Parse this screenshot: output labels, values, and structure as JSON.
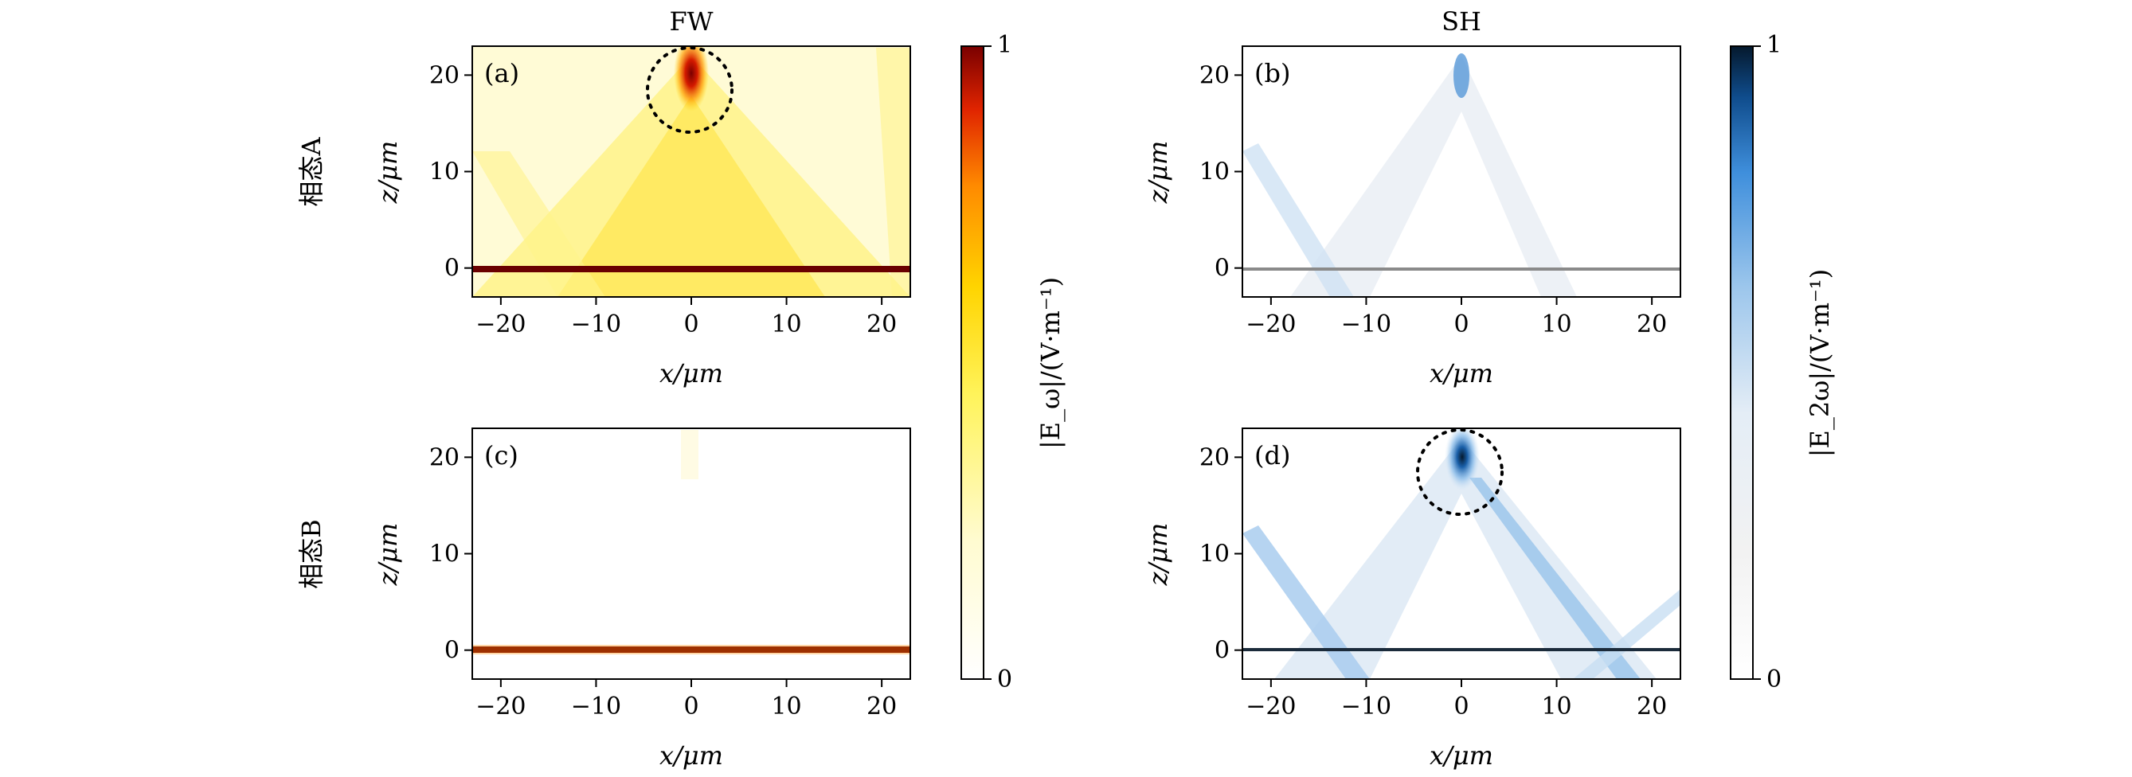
{
  "chart_data": [
    {
      "type": "heatmap",
      "panel": "(a)",
      "title": "FW",
      "row_label": "相态A",
      "xlabel": "x/μm",
      "ylabel": "z/μm",
      "xlim": [
        -23,
        23
      ],
      "ylim": [
        -3,
        23
      ],
      "xticks": [
        -20,
        -10,
        0,
        10,
        20
      ],
      "yticks": [
        0,
        10,
        20
      ],
      "colormap": "hot",
      "features": [
        {
          "kind": "hotspot",
          "x": 0,
          "z": 20,
          "intensity": 1.0
        },
        {
          "kind": "interface",
          "z": -0.3,
          "intensity": 1.0
        },
        {
          "kind": "diagonal-beams",
          "intensity": 0.35
        }
      ],
      "annotation": {
        "kind": "dotted-circle",
        "x": 0,
        "z": 19.5
      }
    },
    {
      "type": "heatmap",
      "panel": "(b)",
      "title": "SH",
      "xlabel": "x/μm",
      "ylabel": "z/μm",
      "xlim": [
        -23,
        23
      ],
      "ylim": [
        -3,
        23
      ],
      "xticks": [
        -20,
        -10,
        0,
        10,
        20
      ],
      "yticks": [
        0,
        10,
        20
      ],
      "colormap": "blues",
      "features": [
        {
          "kind": "hotspot",
          "x": 0,
          "z": 20.5,
          "intensity": 0.55
        },
        {
          "kind": "interface",
          "z": -0.3,
          "intensity": 0.35
        },
        {
          "kind": "diagonal-beams",
          "intensity": 0.2
        }
      ]
    },
    {
      "type": "heatmap",
      "panel": "(c)",
      "row_label": "相态B",
      "xlabel": "x/μm",
      "ylabel": "z/μm",
      "xlim": [
        -23,
        23
      ],
      "ylim": [
        -3,
        23
      ],
      "xticks": [
        -20,
        -10,
        0,
        10,
        20
      ],
      "yticks": [
        0,
        10,
        20
      ],
      "colormap": "hot",
      "features": [
        {
          "kind": "hotspot",
          "x": 0,
          "z": 20.5,
          "intensity": 0.05
        },
        {
          "kind": "interface",
          "z": -0.3,
          "intensity": 1.0
        }
      ]
    },
    {
      "type": "heatmap",
      "panel": "(d)",
      "xlabel": "x/μm",
      "ylabel": "z/μm",
      "xlim": [
        -23,
        23
      ],
      "ylim": [
        -3,
        23
      ],
      "xticks": [
        -20,
        -10,
        0,
        10,
        20
      ],
      "yticks": [
        0,
        10,
        20
      ],
      "colormap": "blues",
      "features": [
        {
          "kind": "hotspot",
          "x": 0,
          "z": 20,
          "intensity": 1.0
        },
        {
          "kind": "interface",
          "z": -0.3,
          "intensity": 0.9
        },
        {
          "kind": "diagonal-beams",
          "intensity": 0.45
        }
      ],
      "annotation": {
        "kind": "dotted-circle",
        "x": 0,
        "z": 19.5
      }
    }
  ],
  "colorbars": [
    {
      "label": "|E_ω|/(V·m⁻¹)",
      "min": "0",
      "max": "1",
      "colormap": "hot"
    },
    {
      "label": "|E_2ω|/(V·m⁻¹)",
      "min": "0",
      "max": "1",
      "colormap": "blues"
    }
  ]
}
